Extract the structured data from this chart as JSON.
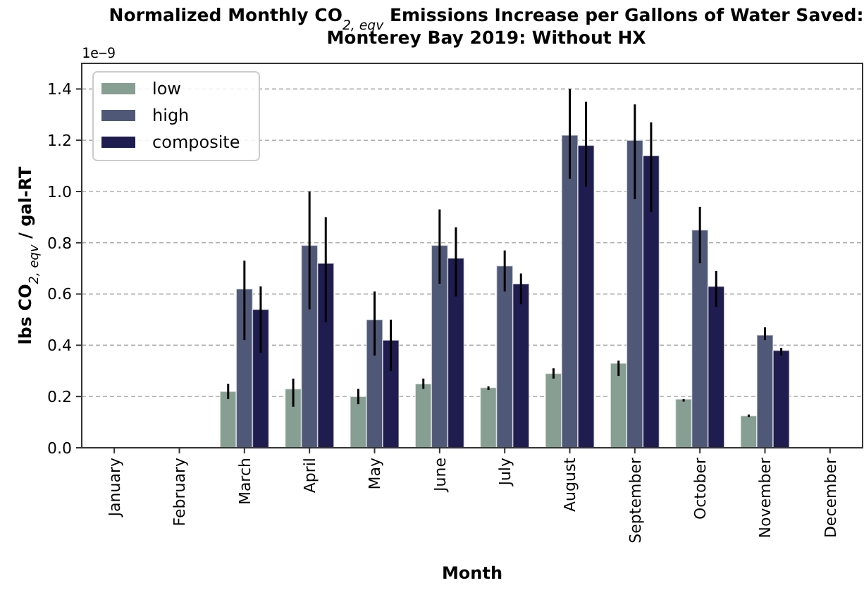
{
  "chart_data": {
    "type": "bar",
    "title": "Normalized Monthly CO$_{2, eqv}$ Emissions Increase per Gallons of Water Saved:\nMonterey Bay 2019: Without HX",
    "xlabel": "Month",
    "ylabel": "lbs CO$_{2, eqv}$ / gal-RT",
    "annotations": [
      "1e−9"
    ],
    "categories": [
      "January",
      "February",
      "March",
      "April",
      "May",
      "June",
      "July",
      "August",
      "September",
      "October",
      "November",
      "December"
    ],
    "series": [
      {
        "name": "low",
        "color": "#879e93",
        "values": [
          0,
          0,
          0.22,
          0.23,
          0.2,
          0.25,
          0.235,
          0.29,
          0.33,
          0.19,
          0.125,
          0
        ],
        "errors": [
          null,
          null,
          [
            0.19,
            0.25
          ],
          [
            0.16,
            0.27
          ],
          [
            0.17,
            0.23
          ],
          [
            0.23,
            0.27
          ],
          [
            0.225,
            0.24
          ],
          [
            0.27,
            0.31
          ],
          [
            0.28,
            0.34
          ],
          [
            0.18,
            0.19
          ],
          [
            0.12,
            0.13
          ],
          null
        ]
      },
      {
        "name": "high",
        "color": "#4f5877",
        "values": [
          0,
          0,
          0.62,
          0.79,
          0.5,
          0.79,
          0.71,
          1.22,
          1.2,
          0.85,
          0.44,
          0
        ],
        "errors": [
          null,
          null,
          [
            0.42,
            0.73
          ],
          [
            0.54,
            1.0
          ],
          [
            0.36,
            0.61
          ],
          [
            0.64,
            0.93
          ],
          [
            0.61,
            0.77
          ],
          [
            1.05,
            1.4
          ],
          [
            0.97,
            1.34
          ],
          [
            0.72,
            0.94
          ],
          [
            0.42,
            0.47
          ],
          null
        ]
      },
      {
        "name": "composite",
        "color": "#1f1c4f",
        "values": [
          0,
          0,
          0.54,
          0.72,
          0.42,
          0.74,
          0.64,
          1.18,
          1.14,
          0.63,
          0.38,
          0
        ],
        "errors": [
          null,
          null,
          [
            0.37,
            0.63
          ],
          [
            0.49,
            0.9
          ],
          [
            0.3,
            0.5
          ],
          [
            0.59,
            0.86
          ],
          [
            0.56,
            0.68
          ],
          [
            1.02,
            1.35
          ],
          [
            0.92,
            1.27
          ],
          [
            0.55,
            0.69
          ],
          [
            0.36,
            0.39
          ],
          null
        ]
      }
    ],
    "ylim": [
      0,
      1.5
    ],
    "yticks": [
      {
        "value": 0,
        "label": "0.0"
      },
      0.2,
      0.4,
      0.6,
      0.8,
      {
        "value": 1,
        "label": "1.0"
      },
      1.2,
      1.4
    ],
    "grid": "y",
    "legend": "top left"
  }
}
